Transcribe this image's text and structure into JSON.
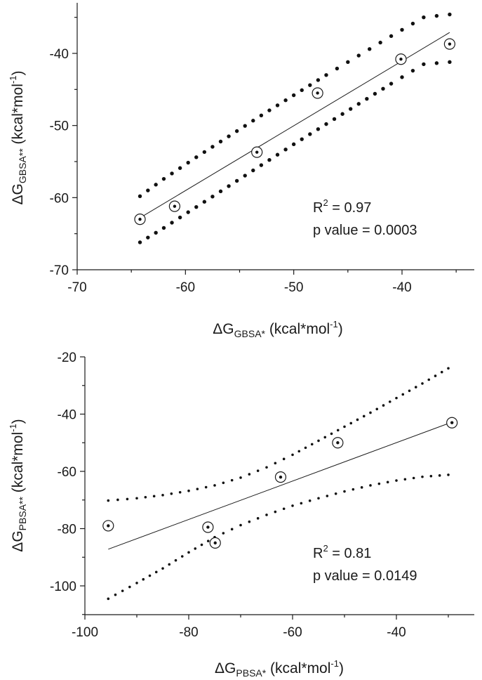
{
  "chart_data": [
    {
      "type": "scatter",
      "x_axis": {
        "prefix": "ΔG",
        "subscript": "GBSA*",
        "unit": " (kcal*mol",
        "unit_sup": "-1",
        "unit_end": ")"
      },
      "y_axis": {
        "prefix": "ΔG",
        "subscript": "GBSA**",
        "unit": " (kcal*mol",
        "unit_sup": "-1",
        "unit_end": ")"
      },
      "xlim": [
        -70,
        -35
      ],
      "ylim": [
        -70,
        -33
      ],
      "x_ticks": [
        -70,
        -60,
        -50,
        -40
      ],
      "x_tick_labels": [
        "-70",
        "-60",
        "-50",
        "-40"
      ],
      "y_ticks": [
        -70,
        -60,
        -50,
        -40
      ],
      "y_tick_labels": [
        "-70",
        "-60",
        "-50",
        "-40"
      ],
      "points": [
        {
          "x": -64.2,
          "y": -63.0
        },
        {
          "x": -61.0,
          "y": -61.2
        },
        {
          "x": -53.4,
          "y": -53.7
        },
        {
          "x": -47.8,
          "y": -45.5
        },
        {
          "x": -40.1,
          "y": -40.8
        },
        {
          "x": -35.6,
          "y": -38.7
        }
      ],
      "fit_line": {
        "x": [
          -64.2,
          -35.6
        ],
        "y": [
          -62.8,
          -37.1
        ]
      },
      "confidence_band": {
        "x": [
          -64.2,
          -62.0,
          -59.0,
          -56.0,
          -53.0,
          -50.0,
          -47.0,
          -44.0,
          -41.0,
          -38.0,
          -35.6
        ],
        "upper": [
          -59.8,
          -57.4,
          -54.4,
          -51.5,
          -48.6,
          -45.8,
          -43.0,
          -40.3,
          -37.6,
          -35.0,
          -34.6
        ],
        "lower": [
          -66.2,
          -64.2,
          -61.3,
          -58.4,
          -55.5,
          -52.6,
          -49.8,
          -47.0,
          -44.2,
          -41.5,
          -41.2
        ]
      },
      "annotation": {
        "r2_label": "R",
        "r2_sup": "2",
        "r2_value": " = 0.97",
        "p_text": "p value = 0.0003"
      }
    },
    {
      "type": "scatter",
      "x_axis": {
        "prefix": "ΔG",
        "subscript": "PBSA*",
        "unit": " (kcal*mol",
        "unit_sup": "-1",
        "unit_end": ")"
      },
      "y_axis": {
        "prefix": "ΔG",
        "subscript": "PBSA**",
        "unit": " (kcal*mol",
        "unit_sup": "-1",
        "unit_end": ")"
      },
      "xlim": [
        -100,
        -25
      ],
      "ylim": [
        -110,
        -20
      ],
      "x_ticks": [
        -100,
        -80,
        -60,
        -40
      ],
      "x_tick_labels": [
        "-100",
        "-80",
        "-60",
        "-40"
      ],
      "y_ticks": [
        -100,
        -80,
        -60,
        -40,
        -20
      ],
      "y_tick_labels": [
        "-100",
        "-80",
        "-60",
        "-40",
        "-20"
      ],
      "points": [
        {
          "x": -95.5,
          "y": -79.0
        },
        {
          "x": -76.3,
          "y": -79.5
        },
        {
          "x": -74.9,
          "y": -85.0
        },
        {
          "x": -62.3,
          "y": -62.0
        },
        {
          "x": -51.3,
          "y": -50.0
        },
        {
          "x": -29.3,
          "y": -43.0
        }
      ],
      "fit_line": {
        "x": [
          -95.5,
          -29.3
        ],
        "y": [
          -87.2,
          -42.8
        ]
      },
      "confidence_band": {
        "x": [
          -95.5,
          -90,
          -85,
          -80,
          -75,
          -70,
          -65,
          -60,
          -55,
          -50,
          -45,
          -40,
          -35,
          -30
        ],
        "upper": [
          -70.2,
          -69.4,
          -68.3,
          -66.8,
          -64.9,
          -62.2,
          -58.6,
          -54.2,
          -49.3,
          -44.4,
          -39.5,
          -34.4,
          -29.3,
          -24.0
        ],
        "lower": [
          -104.5,
          -99.0,
          -93.9,
          -88.3,
          -83.0,
          -78.8,
          -75.2,
          -72.0,
          -69.4,
          -67.0,
          -64.9,
          -63.2,
          -61.9,
          -61.2
        ]
      },
      "annotation": {
        "r2_label": "R",
        "r2_sup": "2",
        "r2_value": " = 0.81",
        "p_text": "p value = 0.0149"
      }
    }
  ]
}
